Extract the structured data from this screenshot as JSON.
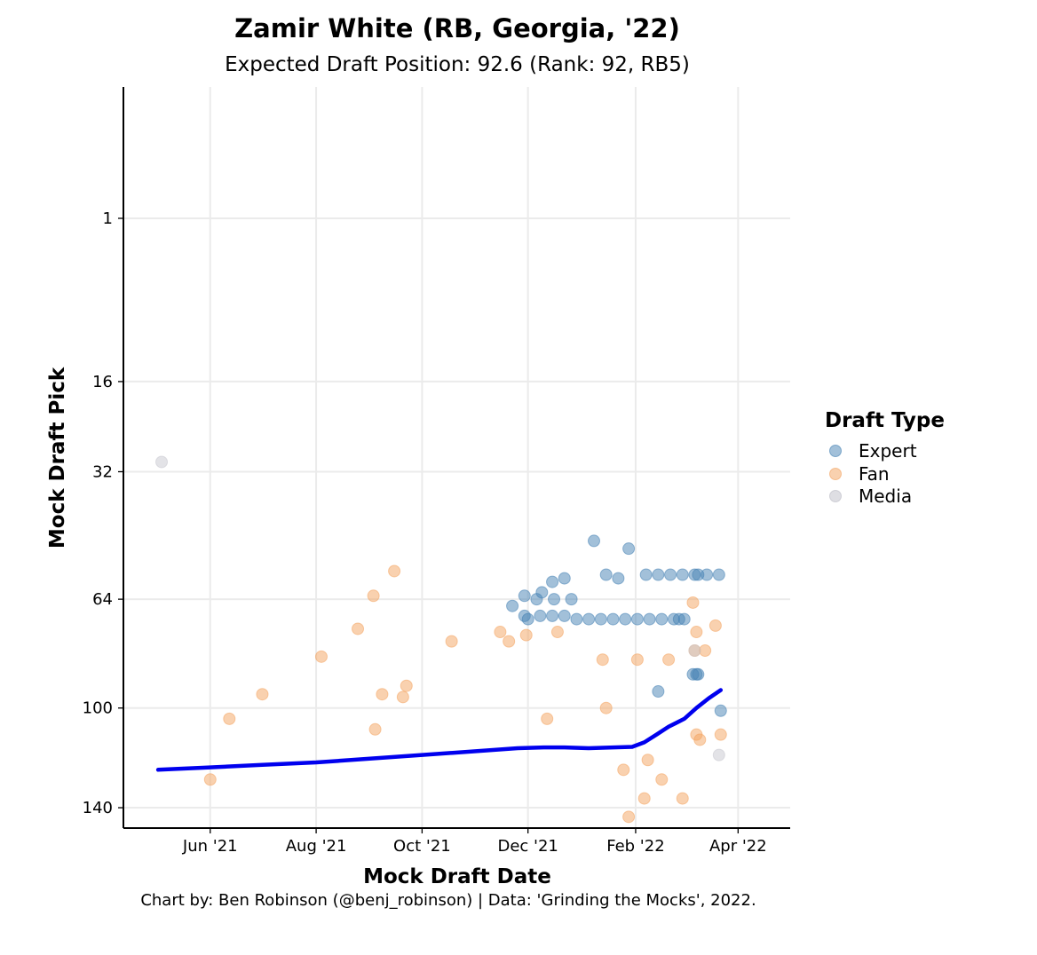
{
  "chart_data": {
    "type": "scatter",
    "title": "Zamir White (RB, Georgia, '22)",
    "subtitle": "Expected Draft Position: 92.6 (Rank: 92, RB5)",
    "xlabel": "Mock Draft Date",
    "ylabel": "Mock Draft Pick",
    "caption": "Chart by: Ben Robinson (@benj_robinson) | Data: 'Grinding the Mocks', 2022.",
    "x_scale": "date",
    "xlim": [
      "2021-04-12",
      "2022-05-01"
    ],
    "x_ticks": [
      {
        "date": "2021-06-01",
        "label": "Jun '21"
      },
      {
        "date": "2021-08-01",
        "label": "Aug '21"
      },
      {
        "date": "2021-10-01",
        "label": "Oct '21"
      },
      {
        "date": "2021-12-01",
        "label": "Dec '21"
      },
      {
        "date": "2022-02-01",
        "label": "Feb '22"
      },
      {
        "date": "2022-04-01",
        "label": "Apr '22"
      }
    ],
    "y_scale": "sqrt",
    "y_reversed": true,
    "ylim": [
      -2,
      149
    ],
    "y_ticks": [
      1,
      16,
      32,
      64,
      100,
      140
    ],
    "grid": true,
    "legend": {
      "title": "Draft Type",
      "position": "right"
    },
    "series": [
      {
        "name": "Expert",
        "color": "#4682b4",
        "points": [
          {
            "x": "2021-11-22",
            "y": 66
          },
          {
            "x": "2021-11-29",
            "y": 63
          },
          {
            "x": "2021-12-06",
            "y": 64
          },
          {
            "x": "2021-12-15",
            "y": 59
          },
          {
            "x": "2021-12-22",
            "y": 58
          },
          {
            "x": "2022-01-08",
            "y": 48
          },
          {
            "x": "2022-01-28",
            "y": 50
          },
          {
            "x": "2022-01-15",
            "y": 57
          },
          {
            "x": "2022-01-22",
            "y": 58
          },
          {
            "x": "2021-12-09",
            "y": 62
          },
          {
            "x": "2021-12-16",
            "y": 64
          },
          {
            "x": "2022-02-07",
            "y": 57
          },
          {
            "x": "2022-02-14",
            "y": 57
          },
          {
            "x": "2022-02-21",
            "y": 57
          },
          {
            "x": "2022-02-28",
            "y": 57
          },
          {
            "x": "2022-03-07",
            "y": 57
          },
          {
            "x": "2022-03-09",
            "y": 57
          },
          {
            "x": "2022-03-14",
            "y": 57
          },
          {
            "x": "2022-03-21",
            "y": 57
          },
          {
            "x": "2021-12-26",
            "y": 64
          },
          {
            "x": "2021-11-29",
            "y": 69
          },
          {
            "x": "2021-12-01",
            "y": 70
          },
          {
            "x": "2021-12-08",
            "y": 69
          },
          {
            "x": "2021-12-15",
            "y": 69
          },
          {
            "x": "2021-12-22",
            "y": 69
          },
          {
            "x": "2021-12-29",
            "y": 70
          },
          {
            "x": "2022-01-05",
            "y": 70
          },
          {
            "x": "2022-01-12",
            "y": 70
          },
          {
            "x": "2022-01-19",
            "y": 70
          },
          {
            "x": "2022-01-26",
            "y": 70
          },
          {
            "x": "2022-02-02",
            "y": 70
          },
          {
            "x": "2022-02-09",
            "y": 70
          },
          {
            "x": "2022-02-16",
            "y": 70
          },
          {
            "x": "2022-02-23",
            "y": 70
          },
          {
            "x": "2022-02-26",
            "y": 70
          },
          {
            "x": "2022-03-01",
            "y": 70
          },
          {
            "x": "2022-03-06",
            "y": 88
          },
          {
            "x": "2022-03-08",
            "y": 88
          },
          {
            "x": "2022-03-09",
            "y": 88
          },
          {
            "x": "2022-02-14",
            "y": 94
          },
          {
            "x": "2022-03-22",
            "y": 101
          }
        ]
      },
      {
        "name": "Fan",
        "color": "#f4a460",
        "points": [
          {
            "x": "2021-06-01",
            "y": 128
          },
          {
            "x": "2021-06-12",
            "y": 104
          },
          {
            "x": "2021-07-01",
            "y": 95
          },
          {
            "x": "2021-08-04",
            "y": 82
          },
          {
            "x": "2021-08-25",
            "y": 73
          },
          {
            "x": "2021-09-03",
            "y": 63
          },
          {
            "x": "2021-09-04",
            "y": 108
          },
          {
            "x": "2021-09-08",
            "y": 95
          },
          {
            "x": "2021-09-15",
            "y": 56
          },
          {
            "x": "2021-09-20",
            "y": 96
          },
          {
            "x": "2021-09-22",
            "y": 92
          },
          {
            "x": "2021-10-18",
            "y": 77
          },
          {
            "x": "2021-11-15",
            "y": 74
          },
          {
            "x": "2021-11-20",
            "y": 77
          },
          {
            "x": "2021-11-30",
            "y": 75
          },
          {
            "x": "2021-12-12",
            "y": 104
          },
          {
            "x": "2021-12-18",
            "y": 74
          },
          {
            "x": "2022-01-13",
            "y": 83
          },
          {
            "x": "2022-01-15",
            "y": 100
          },
          {
            "x": "2022-01-25",
            "y": 124
          },
          {
            "x": "2022-01-28",
            "y": 144
          },
          {
            "x": "2022-02-02",
            "y": 83
          },
          {
            "x": "2022-02-06",
            "y": 136
          },
          {
            "x": "2022-02-08",
            "y": 120
          },
          {
            "x": "2022-02-16",
            "y": 128
          },
          {
            "x": "2022-02-20",
            "y": 83
          },
          {
            "x": "2022-02-28",
            "y": 136
          },
          {
            "x": "2022-03-08",
            "y": 110
          },
          {
            "x": "2022-03-06",
            "y": 65
          },
          {
            "x": "2022-03-08",
            "y": 74
          },
          {
            "x": "2022-03-10",
            "y": 112
          },
          {
            "x": "2022-03-13",
            "y": 80
          },
          {
            "x": "2022-03-07",
            "y": 80
          },
          {
            "x": "2022-03-19",
            "y": 72
          },
          {
            "x": "2022-03-22",
            "y": 110
          }
        ]
      },
      {
        "name": "Media",
        "color": "#c8c8d0",
        "points": [
          {
            "x": "2021-05-04",
            "y": 30
          },
          {
            "x": "2022-03-07",
            "y": 80
          },
          {
            "x": "2022-03-21",
            "y": 118
          }
        ]
      }
    ],
    "trend": {
      "name": "",
      "color": "#0000ee",
      "points": [
        {
          "x": "2021-05-02",
          "y": 124
        },
        {
          "x": "2021-06-01",
          "y": 123
        },
        {
          "x": "2021-07-01",
          "y": 122
        },
        {
          "x": "2021-08-01",
          "y": 121
        },
        {
          "x": "2021-09-01",
          "y": 119.5
        },
        {
          "x": "2021-10-01",
          "y": 118
        },
        {
          "x": "2021-11-01",
          "y": 116.5
        },
        {
          "x": "2021-11-25",
          "y": 115.3
        },
        {
          "x": "2021-12-10",
          "y": 115
        },
        {
          "x": "2021-12-22",
          "y": 115
        },
        {
          "x": "2022-01-05",
          "y": 115.3
        },
        {
          "x": "2022-01-15",
          "y": 115.1
        },
        {
          "x": "2022-01-30",
          "y": 114.8
        },
        {
          "x": "2022-02-06",
          "y": 113
        },
        {
          "x": "2022-02-13",
          "y": 110
        },
        {
          "x": "2022-02-20",
          "y": 107
        },
        {
          "x": "2022-03-01",
          "y": 104
        },
        {
          "x": "2022-03-08",
          "y": 100
        },
        {
          "x": "2022-03-15",
          "y": 96.5
        },
        {
          "x": "2022-03-22",
          "y": 93.5
        }
      ]
    }
  }
}
